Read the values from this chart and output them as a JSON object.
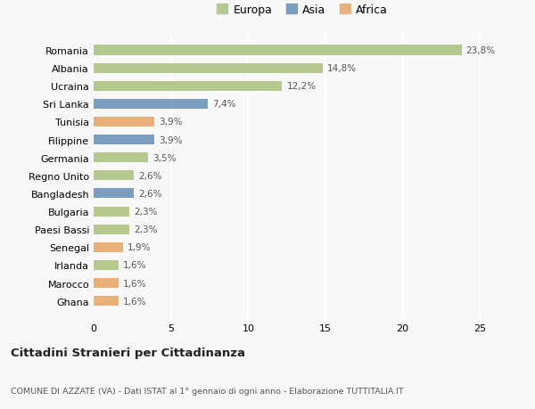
{
  "categories": [
    "Romania",
    "Albania",
    "Ucraina",
    "Sri Lanka",
    "Tunisia",
    "Filippine",
    "Germania",
    "Regno Unito",
    "Bangladesh",
    "Bulgaria",
    "Paesi Bassi",
    "Senegal",
    "Irlanda",
    "Marocco",
    "Ghana"
  ],
  "values": [
    23.8,
    14.8,
    12.2,
    7.4,
    3.9,
    3.9,
    3.5,
    2.6,
    2.6,
    2.3,
    2.3,
    1.9,
    1.6,
    1.6,
    1.6
  ],
  "continents": [
    "Europa",
    "Europa",
    "Europa",
    "Asia",
    "Africa",
    "Asia",
    "Europa",
    "Europa",
    "Asia",
    "Europa",
    "Europa",
    "Africa",
    "Europa",
    "Africa",
    "Africa"
  ],
  "colors": {
    "Europa": "#b5c98e",
    "Asia": "#7b9dbf",
    "Africa": "#e8b07a"
  },
  "legend_labels": [
    "Europa",
    "Asia",
    "Africa"
  ],
  "legend_colors": [
    "#b5c98e",
    "#7b9dbf",
    "#e8b07a"
  ],
  "xlim": [
    0,
    27
  ],
  "xticks": [
    0,
    5,
    10,
    15,
    20,
    25
  ],
  "title1": "Cittadini Stranieri per Cittadinanza",
  "title2": "COMUNE DI AZZATE (VA) - Dati ISTAT al 1° gennaio di ogni anno - Elaborazione TUTTITALIA.IT",
  "background_color": "#f8f8f8",
  "grid_color": "#ffffff",
  "bar_height": 0.55
}
